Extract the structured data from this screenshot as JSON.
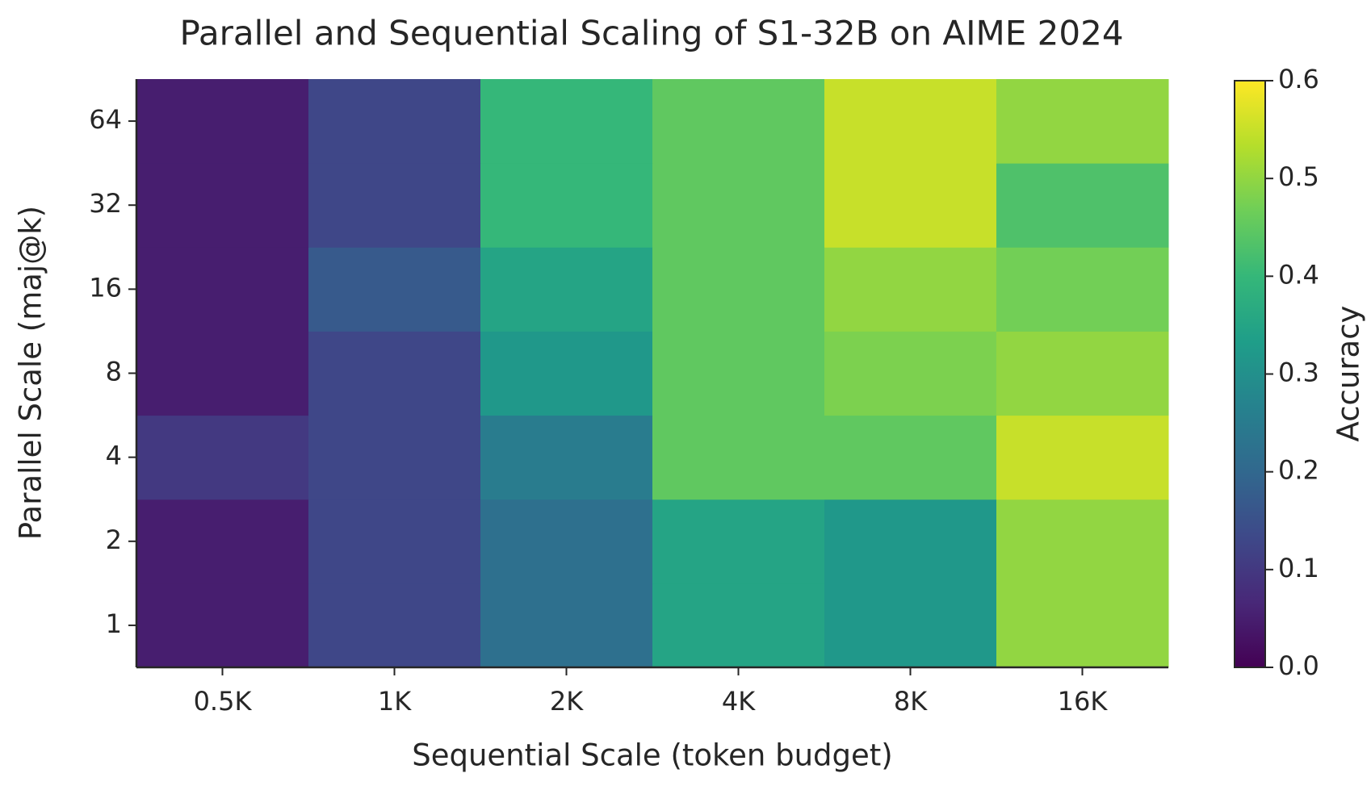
{
  "chart_data": {
    "type": "heatmap",
    "title": "Parallel and Sequential Scaling of S1-32B on AIME 2024",
    "x_label": "Sequential Scale (token budget)",
    "y_label": "Parallel Scale (maj@k)",
    "x_categories": [
      "0.5K",
      "1K",
      "2K",
      "4K",
      "8K",
      "16K"
    ],
    "y_categories": [
      "1",
      "2",
      "4",
      "8",
      "16",
      "32",
      "64"
    ],
    "values": [
      [
        0.05,
        0.13,
        0.22,
        0.35,
        0.32,
        0.5
      ],
      [
        0.05,
        0.13,
        0.22,
        0.35,
        0.32,
        0.5
      ],
      [
        0.1,
        0.13,
        0.25,
        0.45,
        0.45,
        0.55
      ],
      [
        0.05,
        0.13,
        0.32,
        0.45,
        0.48,
        0.5
      ],
      [
        0.05,
        0.17,
        0.35,
        0.45,
        0.5,
        0.47
      ],
      [
        0.05,
        0.13,
        0.4,
        0.45,
        0.55,
        0.43
      ],
      [
        0.05,
        0.13,
        0.4,
        0.45,
        0.55,
        0.5
      ]
    ],
    "colormap": "viridis",
    "colorbar_label": "Accuracy",
    "clim": [
      0,
      0.6
    ],
    "cticks": [
      {
        "value": 0,
        "label": "0.0"
      },
      0.1,
      0.2,
      0.3,
      0.4,
      0.5,
      0.6
    ]
  }
}
